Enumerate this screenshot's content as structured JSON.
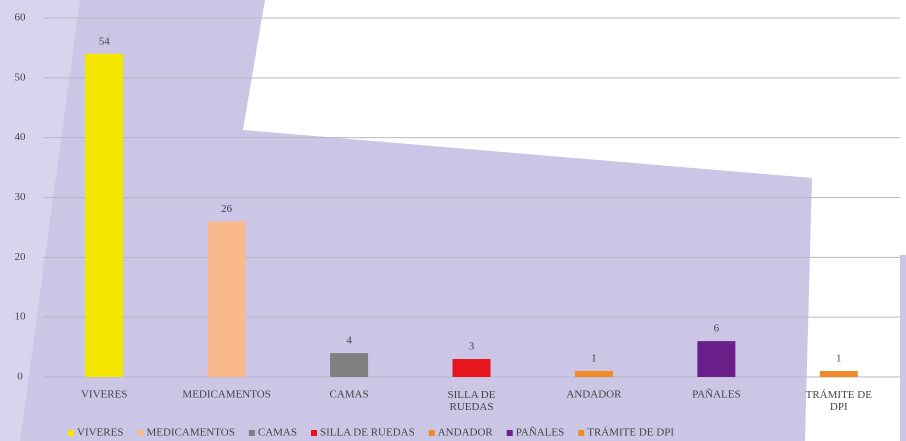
{
  "chart_data": {
    "type": "bar",
    "categories": [
      "VIVERES",
      "MEDICAMENTOS",
      "CAMAS",
      "SILLA DE RUEDAS",
      "ANDADOR",
      "PAÑALES",
      "TRÁMITE DE DPI"
    ],
    "values": [
      54,
      26,
      4,
      3,
      1,
      6,
      1
    ],
    "colors": [
      "#f5e600",
      "#f9b98a",
      "#7f7f7f",
      "#e8141e",
      "#f08a24",
      "#6a1f8a",
      "#f08a24"
    ],
    "ylim": [
      0,
      60
    ],
    "yticks": [
      0,
      10,
      20,
      30,
      40,
      50,
      60
    ],
    "grid": true,
    "legend": "bottom"
  }
}
